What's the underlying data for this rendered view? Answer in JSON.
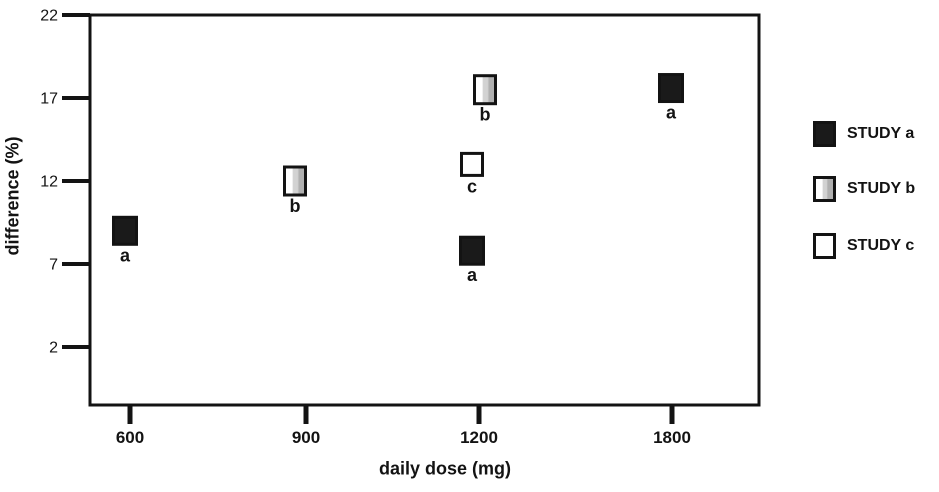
{
  "chart_data": {
    "type": "scatter",
    "title": "",
    "xlabel": "daily dose (mg)",
    "ylabel": "difference (%)",
    "x_ticks": [
      "600",
      "900",
      "1200",
      "1800"
    ],
    "y_ticks": [
      22,
      17,
      12,
      7,
      2
    ],
    "ylim": [
      -1.5,
      22
    ],
    "xlim_note": "categorical x axis, equal-style spacing",
    "grid": false,
    "legend_position": "right-outside",
    "series": [
      {
        "name": "STUDY a",
        "letter": "a",
        "marker": "filled-square",
        "marker_size": [
          23,
          27
        ],
        "points": [
          {
            "dose": 600,
            "value": 9.0,
            "dx": -5
          },
          {
            "dose": 1200,
            "value": 7.8,
            "dx": -7
          },
          {
            "dose": 1800,
            "value": 17.6,
            "dx": -1
          }
        ]
      },
      {
        "name": "STUDY b",
        "letter": "b",
        "marker": "gradient-square",
        "marker_size": [
          21,
          28
        ],
        "points": [
          {
            "dose": 900,
            "value": 12.0,
            "dx": -11
          },
          {
            "dose": 1200,
            "value": 17.5,
            "dx": 6
          }
        ]
      },
      {
        "name": "STUDY c",
        "letter": "c",
        "marker": "open-square",
        "marker_size": [
          21,
          22
        ],
        "points": [
          {
            "dose": 1200,
            "value": 13.0,
            "dx": -7
          }
        ]
      }
    ],
    "colors": {
      "black": "#1a1a1a",
      "white": "#ffffff",
      "gray_light": "#d2d2d2",
      "gray_dark": "#b0b0b0",
      "stroke": "#131313",
      "text": "#131313"
    }
  }
}
